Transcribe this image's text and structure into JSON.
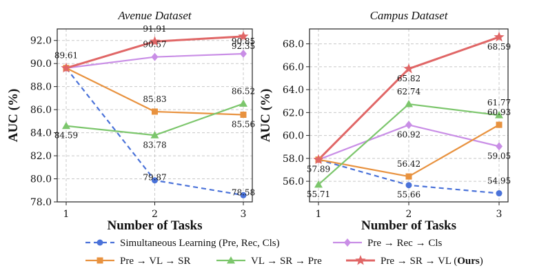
{
  "chart_data": [
    {
      "type": "line",
      "title": "Avenue Dataset",
      "xlabel": "Number of Tasks",
      "ylabel": "AUC (%)",
      "x": [
        1,
        2,
        3
      ],
      "ylim": [
        78.0,
        93.0
      ],
      "yticks": [
        "78.0",
        "80.0",
        "82.0",
        "84.0",
        "86.0",
        "88.0",
        "90.0",
        "92.0"
      ],
      "xticks": [
        "1",
        "2",
        "3"
      ],
      "grid": true,
      "series": [
        {
          "name": "Simultaneous Learning (Pre, Rec, Cls)",
          "values": [
            89.61,
            79.87,
            78.58
          ],
          "labels": [
            "",
            "79.87",
            "78.58"
          ]
        },
        {
          "name": "Pre → Rec → Cls",
          "values": [
            89.61,
            90.57,
            90.85
          ],
          "labels": [
            "",
            "90.57",
            "90.85"
          ]
        },
        {
          "name": "Pre → VL → SR",
          "values": [
            89.61,
            85.83,
            85.56
          ],
          "labels": [
            "",
            "85.83",
            "85.56"
          ]
        },
        {
          "name": "VL → SR → Pre",
          "values": [
            84.59,
            83.78,
            86.52
          ],
          "labels": [
            "84.59",
            "83.78",
            "86.52"
          ]
        },
        {
          "name": "Pre → SR → VL (Ours)",
          "values": [
            89.61,
            91.91,
            92.35
          ],
          "labels": [
            "89.61",
            "91.91",
            "92.35"
          ]
        }
      ]
    },
    {
      "type": "line",
      "title": "Campus Dataset",
      "xlabel": "Number of Tasks",
      "ylabel": "AUC (%)",
      "x": [
        1,
        2,
        3
      ],
      "ylim": [
        54.2,
        69.3
      ],
      "yticks": [
        "56.0",
        "58.0",
        "60.0",
        "62.0",
        "64.0",
        "66.0",
        "68.0"
      ],
      "xticks": [
        "1",
        "2",
        "3"
      ],
      "grid": true,
      "series": [
        {
          "name": "Simultaneous Learning (Pre, Rec, Cls)",
          "values": [
            57.89,
            55.66,
            54.95
          ],
          "labels": [
            "",
            "55.66",
            "54.95"
          ]
        },
        {
          "name": "Pre → Rec → Cls",
          "values": [
            57.89,
            60.92,
            59.05
          ],
          "labels": [
            "",
            "60.92",
            "59.05"
          ]
        },
        {
          "name": "Pre → VL → SR",
          "values": [
            57.89,
            56.42,
            60.93
          ],
          "labels": [
            "",
            "56.42",
            "60.93"
          ]
        },
        {
          "name": "VL → SR → Pre",
          "values": [
            55.71,
            62.74,
            61.77
          ],
          "labels": [
            "55.71",
            "62.74",
            "61.77"
          ]
        },
        {
          "name": "Pre → SR → VL (Ours)",
          "values": [
            57.89,
            65.82,
            68.59
          ],
          "labels": [
            "57.89",
            "65.82",
            "68.59"
          ]
        }
      ]
    }
  ],
  "series_styles": [
    {
      "color": "#4a72d9",
      "marker": "circle",
      "dash": true
    },
    {
      "color": "#c98ee6",
      "marker": "diamond",
      "dash": false
    },
    {
      "color": "#e8923f",
      "marker": "square",
      "dash": false
    },
    {
      "color": "#7cc66c",
      "marker": "triangle",
      "dash": false
    },
    {
      "color": "#e06666",
      "marker": "star",
      "dash": false
    }
  ],
  "legend": {
    "placement": "bottom",
    "items": [
      {
        "text": "Simultaneous Learning (Pre, Rec, Cls)",
        "bold": ""
      },
      {
        "text": "Pre → Rec → Cls",
        "bold": ""
      },
      {
        "text": "Pre → VL → SR",
        "bold": ""
      },
      {
        "text": "VL → SR → Pre",
        "bold": ""
      },
      {
        "text": "Pre → SR → VL (",
        "bold": "Ours",
        "tail": ")"
      }
    ]
  }
}
